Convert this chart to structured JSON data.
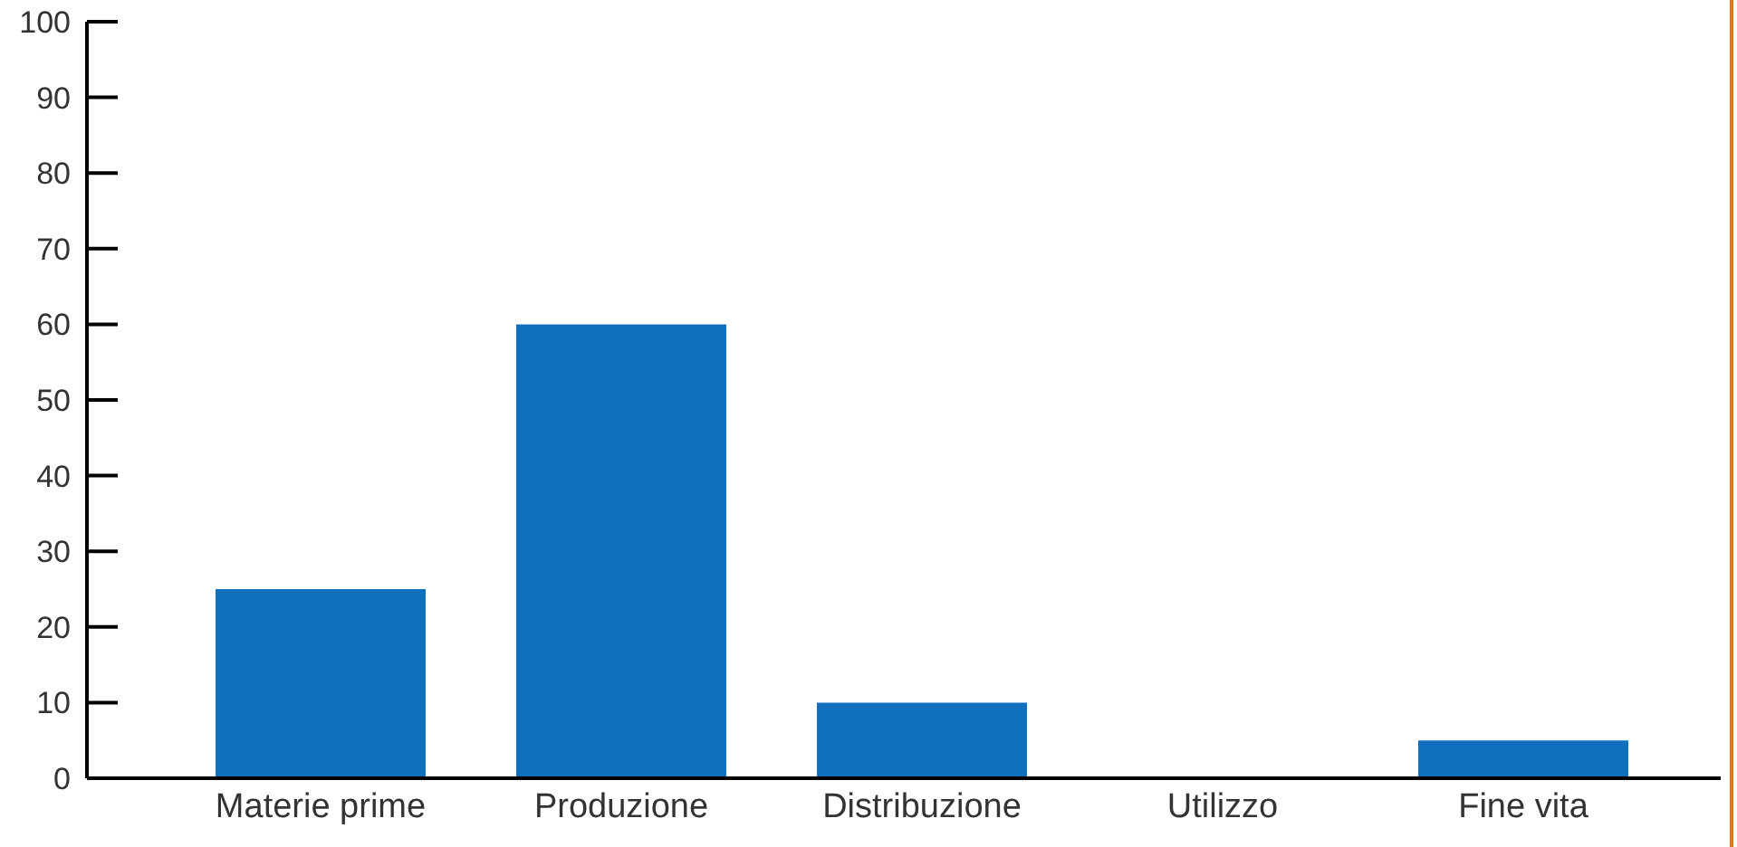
{
  "chart_data": {
    "type": "bar",
    "categories": [
      "Materie prime",
      "Produzione",
      "Distribuzione",
      "Utilizzo",
      "Fine vita"
    ],
    "values": [
      25,
      60,
      10,
      0,
      5
    ],
    "color": "#1170bd",
    "ylim": [
      0,
      100
    ],
    "yticks": [
      0,
      10,
      20,
      30,
      40,
      50,
      60,
      70,
      80,
      90,
      100
    ],
    "grid": false,
    "legend": false
  }
}
